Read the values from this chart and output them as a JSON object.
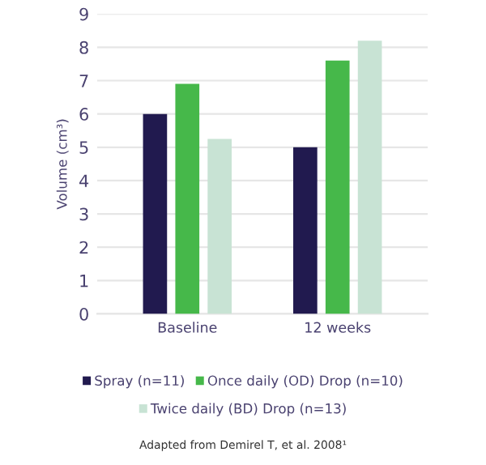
{
  "chart_data": {
    "type": "bar",
    "ylabel": "Volume (cm³)",
    "categories": [
      "Baseline",
      "12 weeks"
    ],
    "series": [
      {
        "name": "Spray (n=11)",
        "color": "#211a4f",
        "values": [
          6.0,
          5.0
        ]
      },
      {
        "name": "Once daily (OD) Drop (n=10)",
        "color": "#46b84a",
        "values": [
          6.9,
          7.6
        ]
      },
      {
        "name": "Twice daily (BD) Drop (n=13)",
        "color": "#c8e3d4",
        "values": [
          5.25,
          8.2
        ]
      }
    ],
    "ylim": [
      0,
      9
    ],
    "yticks": [
      0,
      1,
      2,
      3,
      4,
      5,
      6,
      7,
      8,
      9
    ],
    "grid": "y",
    "legend": "bottom",
    "annotations": [
      "Adapted from Demirel T, et al. 2008¹"
    ]
  }
}
